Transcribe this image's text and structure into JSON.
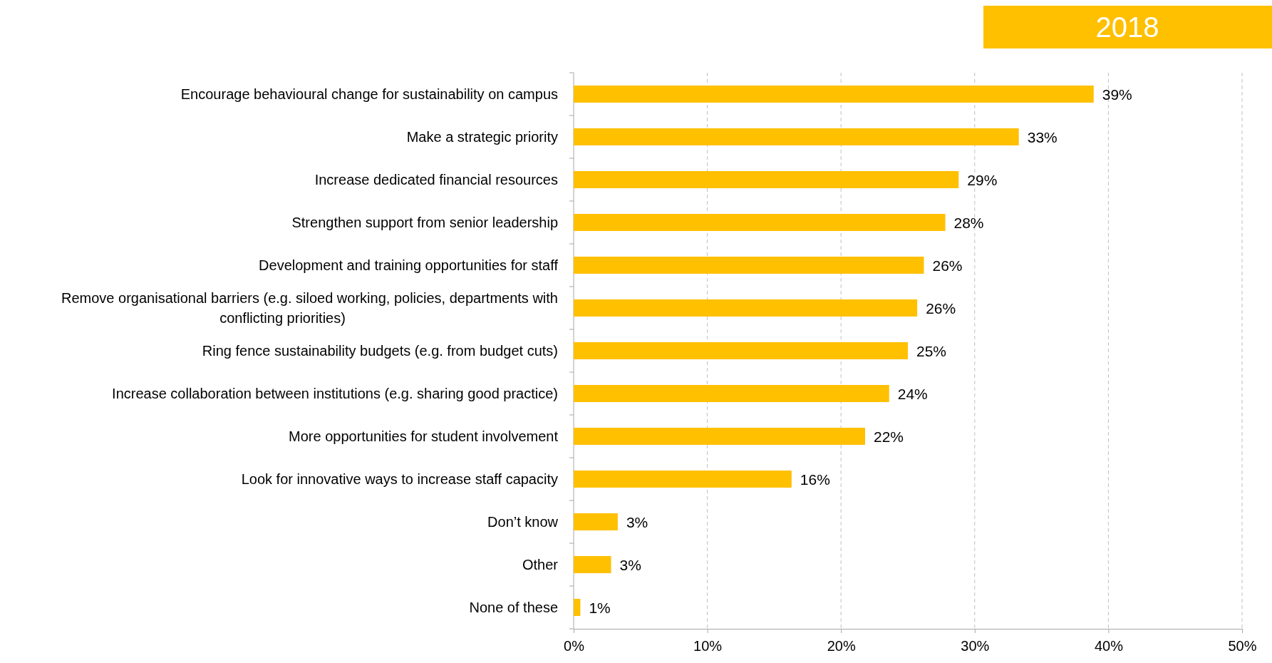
{
  "chart_data": {
    "type": "bar",
    "orientation": "horizontal",
    "title": "2018",
    "categories": [
      "Encourage behavioural change for sustainability on campus",
      "Make a strategic priority",
      "Increase dedicated financial resources",
      "Strengthen support from senior leadership",
      "Development and training opportunities for staff",
      "Remove organisational barriers (e.g. siloed working, policies, departments with conflicting priorities)",
      "Ring fence sustainability budgets (e.g. from budget cuts)",
      "Increase collaboration between institutions (e.g. sharing good practice)",
      "More opportunities for student involvement",
      "Look for innovative ways to increase staff capacity",
      "Don’t know",
      "Other",
      "None of these"
    ],
    "values": [
      38.9,
      33.3,
      28.8,
      27.8,
      26.2,
      25.7,
      25.0,
      23.6,
      21.8,
      16.3,
      3.3,
      2.8,
      0.5
    ],
    "value_labels": [
      "39%",
      "33%",
      "29%",
      "28%",
      "26%",
      "26%",
      "25%",
      "24%",
      "22%",
      "16%",
      "3%",
      "3%",
      "1%"
    ],
    "color": "#ffc000",
    "xlim": [
      0,
      50
    ],
    "xticks": [
      {
        "value": 0,
        "label": "0%"
      },
      {
        "value": 10,
        "label": "10%"
      },
      {
        "value": 20,
        "label": "20%"
      },
      {
        "value": 30,
        "label": "30%"
      },
      {
        "value": 40,
        "label": "40%"
      },
      {
        "value": 50,
        "label": "50%"
      }
    ],
    "grid": "x"
  }
}
